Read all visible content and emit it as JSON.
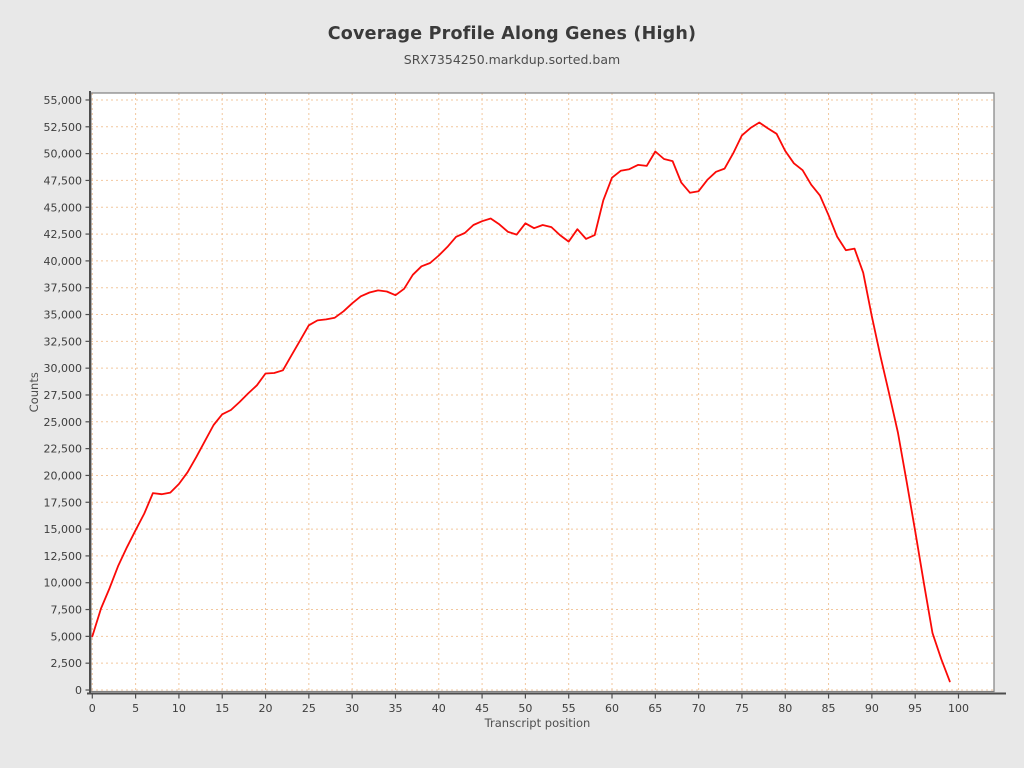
{
  "header": {
    "title": "Coverage Profile Along Genes (High)",
    "subtitle": "SRX7354250.markdup.sorted.bam"
  },
  "chart_data": {
    "type": "line",
    "title": "Coverage Profile Along Genes (High)",
    "subtitle": "SRX7354250.markdup.sorted.bam",
    "xlabel": "Transcript position",
    "ylabel": "Counts",
    "grid": "dashed",
    "legend_position": "none",
    "colors": {
      "line": "#fb0a07",
      "grid": "#f2c79e",
      "plot_background": "#ffffff",
      "page_background": "#e8e8e8",
      "plot_border": "#808080",
      "axis": "#4d4d4d"
    },
    "xlim": [
      -0.15,
      104.1
    ],
    "ylim": [
      -140,
      55650
    ],
    "x_ticks": [
      0,
      5,
      10,
      15,
      20,
      25,
      30,
      35,
      40,
      45,
      50,
      55,
      60,
      65,
      70,
      75,
      80,
      85,
      90,
      95,
      100
    ],
    "y_ticks": [
      0,
      2500,
      5000,
      7500,
      10000,
      12500,
      15000,
      17500,
      20000,
      22500,
      25000,
      27500,
      30000,
      32500,
      35000,
      37500,
      40000,
      42500,
      45000,
      47500,
      50000,
      52500,
      55000
    ],
    "x": [
      0,
      1,
      2,
      3,
      4,
      5,
      6,
      7,
      8,
      9,
      10,
      11,
      12,
      13,
      14,
      15,
      16,
      17,
      18,
      19,
      20,
      21,
      22,
      23,
      24,
      25,
      26,
      27,
      28,
      29,
      30,
      31,
      32,
      33,
      34,
      35,
      36,
      37,
      38,
      39,
      40,
      41,
      42,
      43,
      44,
      45,
      46,
      47,
      48,
      49,
      50,
      51,
      52,
      53,
      54,
      55,
      56,
      57,
      58,
      59,
      60,
      61,
      62,
      63,
      64,
      65,
      66,
      67,
      68,
      69,
      70,
      71,
      72,
      73,
      74,
      75,
      76,
      77,
      78,
      79,
      80,
      81,
      82,
      83,
      84,
      85,
      86,
      87,
      88,
      89,
      90,
      91,
      92,
      93,
      94,
      95,
      96,
      97,
      98,
      99
    ],
    "series": [
      {
        "name": "SRX7354250.markdup.sorted.bam",
        "values": [
          5000,
          7600,
          9500,
          11600,
          13300,
          14900,
          16450,
          18350,
          18250,
          18400,
          19200,
          20300,
          21700,
          23200,
          24700,
          25700,
          26100,
          26850,
          27650,
          28400,
          29500,
          29550,
          29800,
          31200,
          32600,
          34000,
          34450,
          34550,
          34700,
          35300,
          36050,
          36700,
          37050,
          37250,
          37150,
          36800,
          37400,
          38700,
          39500,
          39800,
          40500,
          41300,
          42250,
          42600,
          43350,
          43700,
          43950,
          43400,
          42700,
          42450,
          43500,
          43050,
          43350,
          43150,
          42400,
          41800,
          42950,
          42050,
          42400,
          45650,
          47750,
          48400,
          48550,
          48950,
          48850,
          50200,
          49500,
          49300,
          47300,
          46350,
          46500,
          47550,
          48300,
          48600,
          50050,
          51700,
          52400,
          52900,
          52350,
          51850,
          50250,
          49100,
          48450,
          47100,
          46100,
          44250,
          42250,
          41000,
          41150,
          38900,
          34800,
          31100,
          27600,
          24000,
          19500,
          14800,
          10000,
          5300,
          2900,
          800
        ]
      }
    ]
  }
}
